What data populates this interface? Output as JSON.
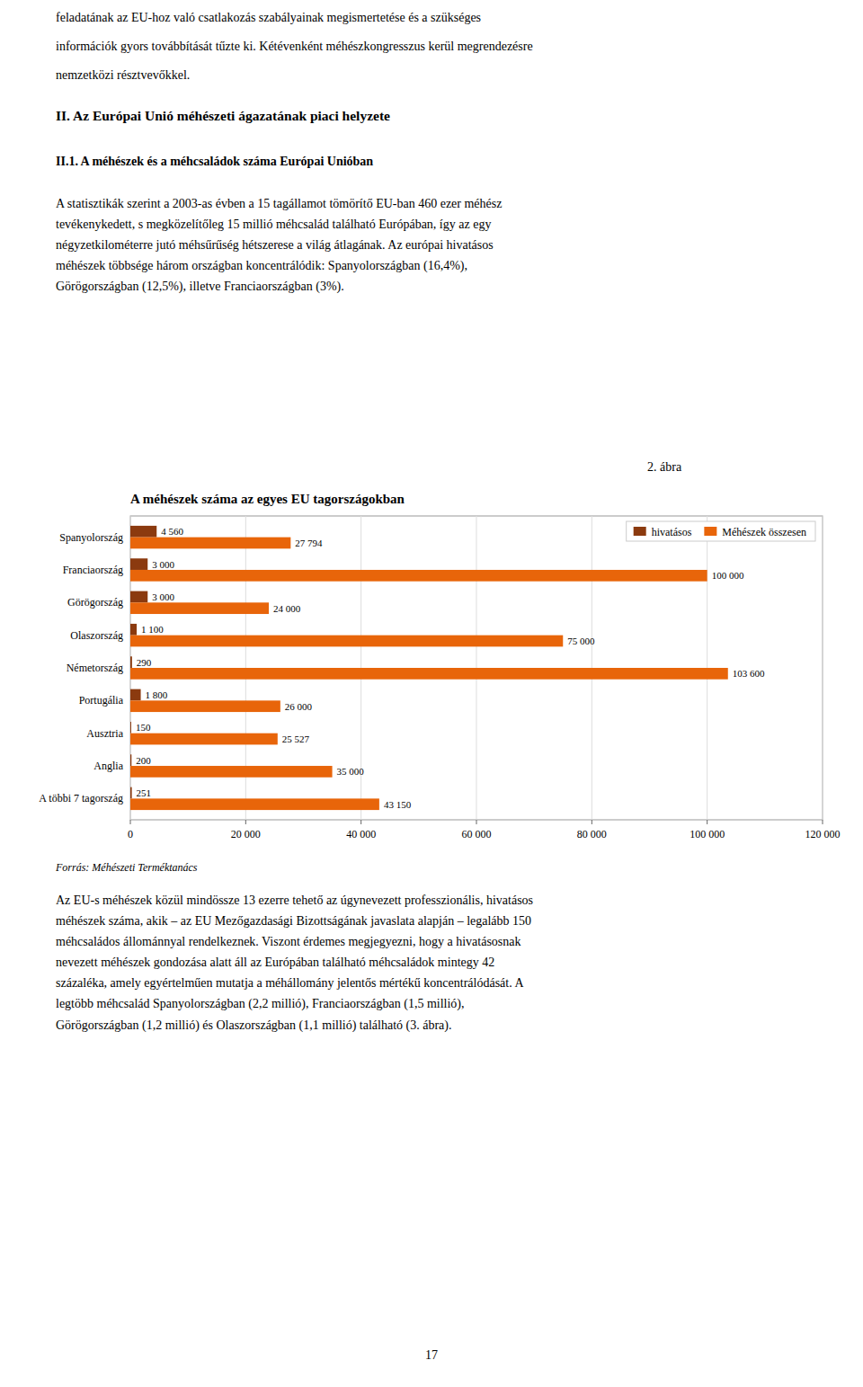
{
  "page": {
    "text_top": [
      "feladatának az EU-hoz való csatlakozás szabályainak megismertetése és a szükséges",
      "információk gyors továbbítását tűzte ki. Kétévenként méhészkongresszus kerül megrendezésre",
      "nemzetközi résztvevőkkel."
    ],
    "heading1": "II. Az Európai Unió méhészeti ágazatának piaci helyzete",
    "heading2": "II.1. A méhészek és a méhcsaládok száma Európai Unióban",
    "body_para": "A statisztikák szerint a 2003-as évben a 15 tagállamot tömörítő EU-ban 460 ezer méhész\ntevékenykedett, s megközelítőleg 15 millió méhcsalád található Európában, így az egy\nnégyzetkilométerre jutó méhsűrűség hétszerese a világ átlagának. Az európai hivatásos\nméhészek többsége három országban koncentrálódik: Spanyolországban (16,4%),\nGörögországban (12,5%), illetve Franciaországban (3%).",
    "abra_label": "2. ábra",
    "source_label": "Forrás: Méhészeti Terméktanács",
    "bottom_para": "Az EU-s méhészek közül mindössze 13 ezerre tehető az úgynevezett professzionális, hivatásos\nméhészek száma, akik – az EU Mezőgazdasági Bizottságának javaslata alapján – legalább 150\nméhcsaládos állománnyal rendelkeznek. Viszont érdemes megjegyezni, hogy a hivatásosnak\nnevezett méhészek gondozása alatt áll az Európában található méhcsaládok mintegy 42\nszázaléka, amely egyértelműen mutatja a méhállomány jelentős mértékű koncentrálódását. A\nlegtöbb méhcsalád Spanyolországban (2,2 millió), Franciaországban (1,5 millió),\nGörögországban (1,2 millió) és Olaszországban (1,1 millió) található (3. ábra).",
    "page_number": "17"
  },
  "chart_data": {
    "type": "bar",
    "orientation": "horizontal",
    "title": "A méhészek száma az egyes EU tagországokban",
    "categories": [
      "A többi 7 tagország",
      "Anglia",
      "Ausztria",
      "Portugália",
      "Németország",
      "Olaszország",
      "Görögország",
      "Franciaország",
      "Spanyolország"
    ],
    "series": [
      {
        "name": "hivatásos",
        "color": "#8B3A0F",
        "values": [
          251,
          200,
          150,
          1800,
          290,
          1100,
          3000,
          3000,
          4560
        ],
        "value_labels": [
          "251",
          "200",
          "150",
          "1 800",
          "290",
          "1 100",
          "3 000",
          "3 000",
          "4 560"
        ]
      },
      {
        "name": "Méhészek összesen",
        "color": "#E8650A",
        "values": [
          43150,
          35000,
          25527,
          26000,
          103600,
          75000,
          24000,
          100000,
          27794
        ],
        "value_labels": [
          "43 150",
          "35 000",
          "25 527",
          "26 000",
          "103 600",
          "75 000",
          "24 000",
          "100 000",
          "27 794"
        ]
      }
    ],
    "xlim": [
      0,
      120000
    ],
    "xticks": [
      0,
      {
        "value": 20000,
        "label": "20 000"
      },
      {
        "value": 40000,
        "label": "40 000"
      },
      {
        "value": 60000,
        "label": "60 000"
      },
      {
        "value": 80000,
        "label": "80 000"
      },
      {
        "value": 100000,
        "label": "100 000"
      },
      {
        "value": 120000,
        "label": "120 000"
      }
    ],
    "grid": true,
    "legend": "upper right",
    "data_labels": true
  }
}
